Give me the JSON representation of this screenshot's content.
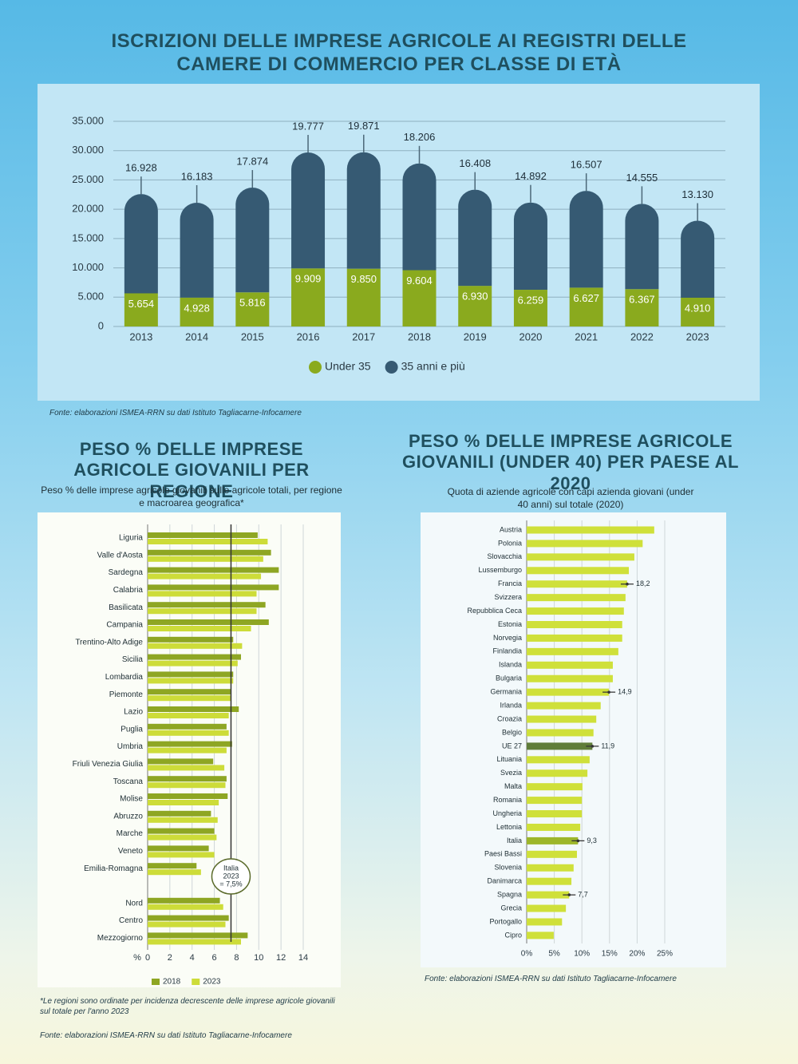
{
  "chart_data": [
    {
      "type": "bar",
      "stacked": true,
      "title": "ISCRIZIONI DELLE IMPRESE AGRICOLE AI REGISTRI DELLE CAMERE DI COMMERCIO PER CLASSE DI ETÀ",
      "categories": [
        "2013",
        "2014",
        "2015",
        "2016",
        "2017",
        "2018",
        "2019",
        "2020",
        "2021",
        "2022",
        "2023"
      ],
      "series": [
        {
          "name": "Under 35",
          "color": "#8aaa1e",
          "values": [
            5654,
            4928,
            5816,
            9909,
            9850,
            9604,
            6930,
            6259,
            6627,
            6367,
            4910
          ],
          "value_labels": [
            "5.654",
            "4.928",
            "5.816",
            "9.909",
            "9.850",
            "9.604",
            "6.930",
            "6.259",
            "6.627",
            "6.367",
            "4.910"
          ]
        },
        {
          "name": "35 anni e più",
          "color": "#365a73",
          "values": [
            16928,
            16183,
            17874,
            19777,
            19871,
            18206,
            16408,
            14892,
            16507,
            14555,
            13130
          ],
          "value_labels": [
            "16.928",
            "16.183",
            "17.874",
            "19.777",
            "19.871",
            "18.206",
            "16.408",
            "14.892",
            "16.507",
            "14.555",
            "13.130"
          ]
        }
      ],
      "ylim": [
        0,
        35000
      ],
      "yticks": [
        0,
        {
          "value": 5000,
          "label": "5.000"
        },
        {
          "value": 10000,
          "label": "10.000"
        },
        {
          "value": 15000,
          "label": "15.000"
        },
        {
          "value": 20000,
          "label": "20.000"
        },
        {
          "value": 25000,
          "label": "25.000"
        },
        {
          "value": 30000,
          "label": "30.000"
        },
        {
          "value": 35000,
          "label": "35.000"
        }
      ],
      "grid": true,
      "legend": "bottom",
      "source": "Fonte: elaborazioni ISMEA-RRN su dati Istituto Tagliacarne-Infocamere"
    },
    {
      "type": "bar",
      "orientation": "horizontal",
      "title": "PESO % DELLE IMPRESE AGRICOLE GIOVANILI PER REGIONE",
      "subtitle": "Peso % delle imprese agricole giovanili sulle agricole totali, per regione e macroarea geografica*",
      "x_label": "%",
      "categories": [
        "Liguria",
        "Valle d'Aosta",
        "Sardegna",
        "Calabria",
        "Basilicata",
        "Campania",
        "Trentino-Alto Adige",
        "Sicilia",
        "Lombardia",
        "Piemonte",
        "Lazio",
        "Puglia",
        "Umbria",
        "Friuli Venezia Giulia",
        "Toscana",
        "Molise",
        "Abruzzo",
        "Marche",
        "Veneto",
        "Emilia-Romagna",
        null,
        "Nord",
        "Centro",
        "Mezzogiorno"
      ],
      "series": [
        {
          "name": "2018",
          "color": "#8ea623",
          "values": [
            9.9,
            11.1,
            11.8,
            11.8,
            10.6,
            10.9,
            7.7,
            8.4,
            7.7,
            7.5,
            8.2,
            7.1,
            7.6,
            5.9,
            7.1,
            7.2,
            5.7,
            6.0,
            5.5,
            4.4,
            null,
            6.5,
            7.3,
            9.0
          ]
        },
        {
          "name": "2023",
          "color": "#cddc39",
          "values": [
            10.8,
            10.4,
            10.2,
            9.8,
            9.8,
            9.3,
            8.5,
            8.1,
            7.7,
            7.5,
            7.3,
            7.3,
            7.1,
            6.9,
            7.0,
            6.4,
            6.3,
            6.2,
            6.0,
            4.8,
            null,
            6.8,
            7.0,
            8.4
          ]
        }
      ],
      "xlim": [
        0,
        14
      ],
      "xticks": [
        0,
        2,
        4,
        6,
        8,
        10,
        12,
        14
      ],
      "grid": true,
      "legend": "bottom",
      "reference_line": 7.5,
      "annotation": [
        "Italia",
        "2023",
        "= 7,5%"
      ],
      "footnote": "*Le regioni sono ordinate per incidenza decrescente delle imprese agricole giovanili sul totale per l'anno 2023",
      "source": "Fonte: elaborazioni ISMEA-RRN su dati Istituto Tagliacarne-Infocamere"
    },
    {
      "type": "bar",
      "orientation": "horizontal",
      "title": "PESO % DELLE IMPRESE AGRICOLE GIOVANILI (UNDER 40) PER PAESE AL 2020",
      "subtitle": "Quota di aziende agricole con capi azienda giovani (under 40 anni) sul totale (2020)",
      "categories": [
        "Austria",
        "Polonia",
        "Slovacchia",
        "Lussemburgo",
        "Francia",
        "Svizzera",
        "Repubblica Ceca",
        "Estonia",
        "Norvegia",
        "Finlandia",
        "Islanda",
        "Bulgaria",
        "Germania",
        "Irlanda",
        "Croazia",
        "Belgio",
        "UE 27",
        "Lituania",
        "Svezia",
        "Malta",
        "Romania",
        "Ungheria",
        "Lettonia",
        "Italia",
        "Paesi Bassi",
        "Slovenia",
        "Danimarca",
        "Spagna",
        "Grecia",
        "Portogallo",
        "Cipro"
      ],
      "values": [
        23.1,
        21.0,
        19.5,
        18.5,
        18.2,
        17.9,
        17.6,
        17.3,
        17.3,
        16.6,
        15.6,
        15.6,
        14.9,
        13.4,
        12.6,
        12.1,
        11.9,
        11.4,
        11.0,
        10.1,
        10.0,
        10.0,
        9.7,
        9.3,
        9.1,
        8.5,
        8.1,
        7.7,
        7.1,
        6.4,
        4.9
      ],
      "value_labels": [
        null,
        null,
        null,
        null,
        "18,2",
        null,
        null,
        null,
        null,
        null,
        null,
        null,
        "14,9",
        null,
        null,
        null,
        "11,9",
        null,
        null,
        null,
        null,
        null,
        null,
        "9,3",
        null,
        null,
        null,
        "7,7",
        null,
        null,
        null
      ],
      "colors": [
        "#cfe03a",
        "#cfe03a",
        "#cfe03a",
        "#cfe03a",
        "#cfe03a",
        "#cfe03a",
        "#cfe03a",
        "#cfe03a",
        "#cfe03a",
        "#cfe03a",
        "#cfe03a",
        "#cfe03a",
        "#cfe03a",
        "#cfe03a",
        "#cfe03a",
        "#cfe03a",
        "#5f7d3a",
        "#cfe03a",
        "#cfe03a",
        "#cfe03a",
        "#cfe03a",
        "#cfe03a",
        "#cfe03a",
        "#9db62a",
        "#cfe03a",
        "#cfe03a",
        "#cfe03a",
        "#cfe03a",
        "#cfe03a",
        "#cfe03a",
        "#cfe03a"
      ],
      "xlim": [
        0,
        25
      ],
      "xticks": [
        {
          "value": 0,
          "label": "0%"
        },
        {
          "value": 5,
          "label": "5%"
        },
        {
          "value": 10,
          "label": "10%"
        },
        {
          "value": 15,
          "label": "15%"
        },
        {
          "value": 20,
          "label": "20%"
        },
        {
          "value": 25,
          "label": "25%"
        }
      ],
      "grid": true,
      "source": "Fonte: elaborazioni ISMEA-RRN su dati Istituto Tagliacarne-Infocamere"
    }
  ]
}
